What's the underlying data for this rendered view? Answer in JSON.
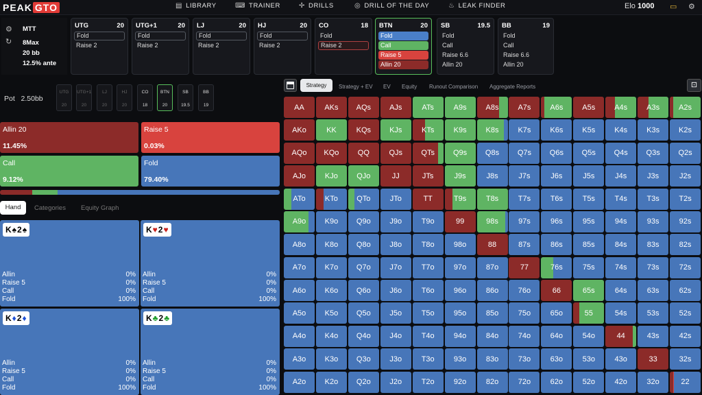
{
  "topbar": {
    "logo_a": "PEAK",
    "logo_b": "GTO",
    "nav": [
      {
        "icon": "▤",
        "label": "LIBRARY"
      },
      {
        "icon": "⌨",
        "label": "TRAINER"
      },
      {
        "icon": "✢",
        "label": "DRILLS"
      },
      {
        "icon": "◎",
        "label": "DRILL OF THE DAY"
      },
      {
        "icon": "♨",
        "label": "LEAK FINDER"
      }
    ],
    "elo_label": "Elo",
    "elo_value": "1000"
  },
  "game": {
    "type": "MTT",
    "table": "8Max",
    "stack": "20 bb",
    "ante": "12.5% ante"
  },
  "positions": [
    {
      "name": "UTG",
      "stack": "20",
      "actions": [
        {
          "label": "Fold",
          "style": "outl"
        },
        {
          "label": "Raise 2",
          "style": ""
        }
      ]
    },
    {
      "name": "UTG+1",
      "stack": "20",
      "actions": [
        {
          "label": "Fold",
          "style": "outl"
        },
        {
          "label": "Raise 2",
          "style": ""
        }
      ]
    },
    {
      "name": "LJ",
      "stack": "20",
      "actions": [
        {
          "label": "Fold",
          "style": "outl"
        },
        {
          "label": "Raise 2",
          "style": ""
        }
      ]
    },
    {
      "name": "HJ",
      "stack": "20",
      "actions": [
        {
          "label": "Fold",
          "style": "outl"
        },
        {
          "label": "Raise 2",
          "style": ""
        }
      ]
    },
    {
      "name": "CO",
      "stack": "18",
      "actions": [
        {
          "label": "Fold",
          "style": ""
        },
        {
          "label": "Raise 2",
          "style": "outlr"
        }
      ]
    },
    {
      "name": "BTN",
      "stack": "20",
      "selected": true,
      "actions": [
        {
          "label": "Fold",
          "style": "blue"
        },
        {
          "label": "Call",
          "style": "green"
        },
        {
          "label": "Raise 5",
          "style": "red"
        },
        {
          "label": "Allin 20",
          "style": "dred"
        }
      ]
    },
    {
      "name": "SB",
      "stack": "19.5",
      "actions": [
        {
          "label": "Fold",
          "style": ""
        },
        {
          "label": "Call",
          "style": ""
        },
        {
          "label": "Raise 6.6",
          "style": ""
        },
        {
          "label": "Allin 20",
          "style": ""
        }
      ]
    },
    {
      "name": "BB",
      "stack": "19",
      "actions": [
        {
          "label": "Fold",
          "style": ""
        },
        {
          "label": "Call",
          "style": ""
        },
        {
          "label": "Raise 6.6",
          "style": ""
        },
        {
          "label": "Allin 20",
          "style": ""
        }
      ]
    }
  ],
  "pot": {
    "label": "Pot",
    "value": "2.50bb"
  },
  "mini_positions": [
    {
      "name": "UTG",
      "stack": "20"
    },
    {
      "name": "UTG+1",
      "stack": "20"
    },
    {
      "name": "LJ",
      "stack": "20"
    },
    {
      "name": "HJ",
      "stack": "20"
    },
    {
      "name": "CO",
      "stack": "18"
    },
    {
      "name": "BTN",
      "stack": "20"
    },
    {
      "name": "SB",
      "stack": "19.5"
    },
    {
      "name": "BB",
      "stack": "19"
    }
  ],
  "actions_summary": [
    {
      "label": "Allin 20",
      "pct": "11.45%",
      "color": "#8c2b29"
    },
    {
      "label": "Raise 5",
      "pct": "0.03%",
      "color": "#d8433e"
    },
    {
      "label": "Call",
      "pct": "9.12%",
      "color": "#5fb463"
    },
    {
      "label": "Fold",
      "pct": "79.40%",
      "color": "#4776b9"
    }
  ],
  "freq_bar": [
    0.1145,
    0.0003,
    0.0912,
    0.794
  ],
  "left_tabs": [
    "Hand",
    "Categories",
    "Equity Graph"
  ],
  "combos": [
    {
      "cards": [
        [
          "K",
          "s"
        ],
        [
          "2",
          "s"
        ]
      ],
      "rows": [
        [
          "Allin",
          "0%"
        ],
        [
          "Raise 5",
          "0%"
        ],
        [
          "Call",
          "0%"
        ],
        [
          "Fold",
          "100%"
        ]
      ]
    },
    {
      "cards": [
        [
          "K",
          "h"
        ],
        [
          "2",
          "h"
        ]
      ],
      "rows": [
        [
          "Allin",
          "0%"
        ],
        [
          "Raise 5",
          "0%"
        ],
        [
          "Call",
          "0%"
        ],
        [
          "Fold",
          "100%"
        ]
      ]
    },
    {
      "cards": [
        [
          "K",
          "d"
        ],
        [
          "2",
          "d"
        ]
      ],
      "rows": [
        [
          "Allin",
          "0%"
        ],
        [
          "Raise 5",
          "0%"
        ],
        [
          "Call",
          "0%"
        ],
        [
          "Fold",
          "100%"
        ]
      ]
    },
    {
      "cards": [
        [
          "K",
          "c"
        ],
        [
          "2",
          "c"
        ]
      ],
      "rows": [
        [
          "Allin",
          "0%"
        ],
        [
          "Raise 5",
          "0%"
        ],
        [
          "Call",
          "0%"
        ],
        [
          "Fold",
          "100%"
        ]
      ]
    }
  ],
  "strategy_tabs": [
    "Strategy",
    "Strategy + EV",
    "EV",
    "Equity",
    "Runout Comparison",
    "Aggregate Reports"
  ],
  "colors": {
    "allin": "#8c2b29",
    "raise": "#d8433e",
    "call": "#5fb463",
    "fold": "#4776b9"
  },
  "grid": {
    "ranks": [
      "A",
      "K",
      "Q",
      "J",
      "T",
      "9",
      "8",
      "7",
      "6",
      "5",
      "4",
      "3",
      "2"
    ],
    "mix": {
      "AA": [
        1,
        0,
        0,
        0
      ],
      "AKs": [
        1,
        0,
        0,
        0
      ],
      "AQs": [
        1,
        0,
        0,
        0
      ],
      "AJs": [
        1,
        0,
        0,
        0
      ],
      "ATs": [
        0,
        0,
        1,
        0
      ],
      "A9s": [
        0,
        0,
        1,
        0
      ],
      "A8s": [
        0.72,
        0,
        0.28,
        0
      ],
      "A7s": [
        1,
        0,
        0,
        0
      ],
      "A6s": [
        0.1,
        0,
        0.9,
        0
      ],
      "A5s": [
        1,
        0,
        0,
        0
      ],
      "A4s": [
        0.3,
        0,
        0.7,
        0
      ],
      "A3s": [
        0.35,
        0,
        0.65,
        0
      ],
      "A2s": [
        0.1,
        0,
        0.9,
        0
      ],
      "AKo": [
        1,
        0,
        0,
        0
      ],
      "KK": [
        0,
        0,
        1,
        0
      ],
      "KQs": [
        1,
        0,
        0,
        0
      ],
      "KJs": [
        0,
        0,
        1,
        0
      ],
      "KTs": [
        0.4,
        0,
        0.6,
        0
      ],
      "K9s": [
        0,
        0,
        1,
        0
      ],
      "K8s": [
        0,
        0,
        0.88,
        0.12
      ],
      "AQo": [
        1,
        0,
        0,
        0
      ],
      "KQo": [
        1,
        0,
        0,
        0
      ],
      "QQ": [
        1,
        0,
        0,
        0
      ],
      "QJs": [
        1,
        0,
        0,
        0
      ],
      "QTs": [
        0.82,
        0,
        0.18,
        0
      ],
      "Q9s": [
        0,
        0,
        1,
        0
      ],
      "AJo": [
        1,
        0,
        0,
        0
      ],
      "KJo": [
        0,
        0,
        1,
        0
      ],
      "QJo": [
        0,
        0,
        1,
        0
      ],
      "JJ": [
        1,
        0,
        0,
        0
      ],
      "JTs": [
        1,
        0,
        0,
        0
      ],
      "J9s": [
        0,
        0,
        1,
        0
      ],
      "ATo": [
        0,
        0,
        0.25,
        0.75
      ],
      "KTo": [
        0.25,
        0,
        0,
        0.75
      ],
      "QTo": [
        0,
        0,
        0.2,
        0.8
      ],
      "TT": [
        1,
        0,
        0,
        0
      ],
      "T9s": [
        0.25,
        0,
        0.75,
        0
      ],
      "T8s": [
        0,
        0,
        1,
        0
      ],
      "A9o": [
        0,
        0,
        0.8,
        0.2
      ],
      "99": [
        1,
        0,
        0,
        0
      ],
      "98s": [
        0,
        0,
        0.92,
        0.08
      ],
      "88": [
        1,
        0,
        0,
        0
      ],
      "77": [
        1,
        0,
        0,
        0
      ],
      "76s": [
        0,
        0,
        0.4,
        0.6
      ],
      "66": [
        1,
        0,
        0,
        0
      ],
      "65s": [
        0,
        0,
        1,
        0
      ],
      "55": [
        0.2,
        0,
        0.8,
        0
      ],
      "44": [
        0.88,
        0,
        0.12,
        0
      ],
      "33": [
        1,
        0,
        0,
        0
      ],
      "22": [
        0.12,
        0.02,
        0,
        0.86
      ]
    }
  }
}
